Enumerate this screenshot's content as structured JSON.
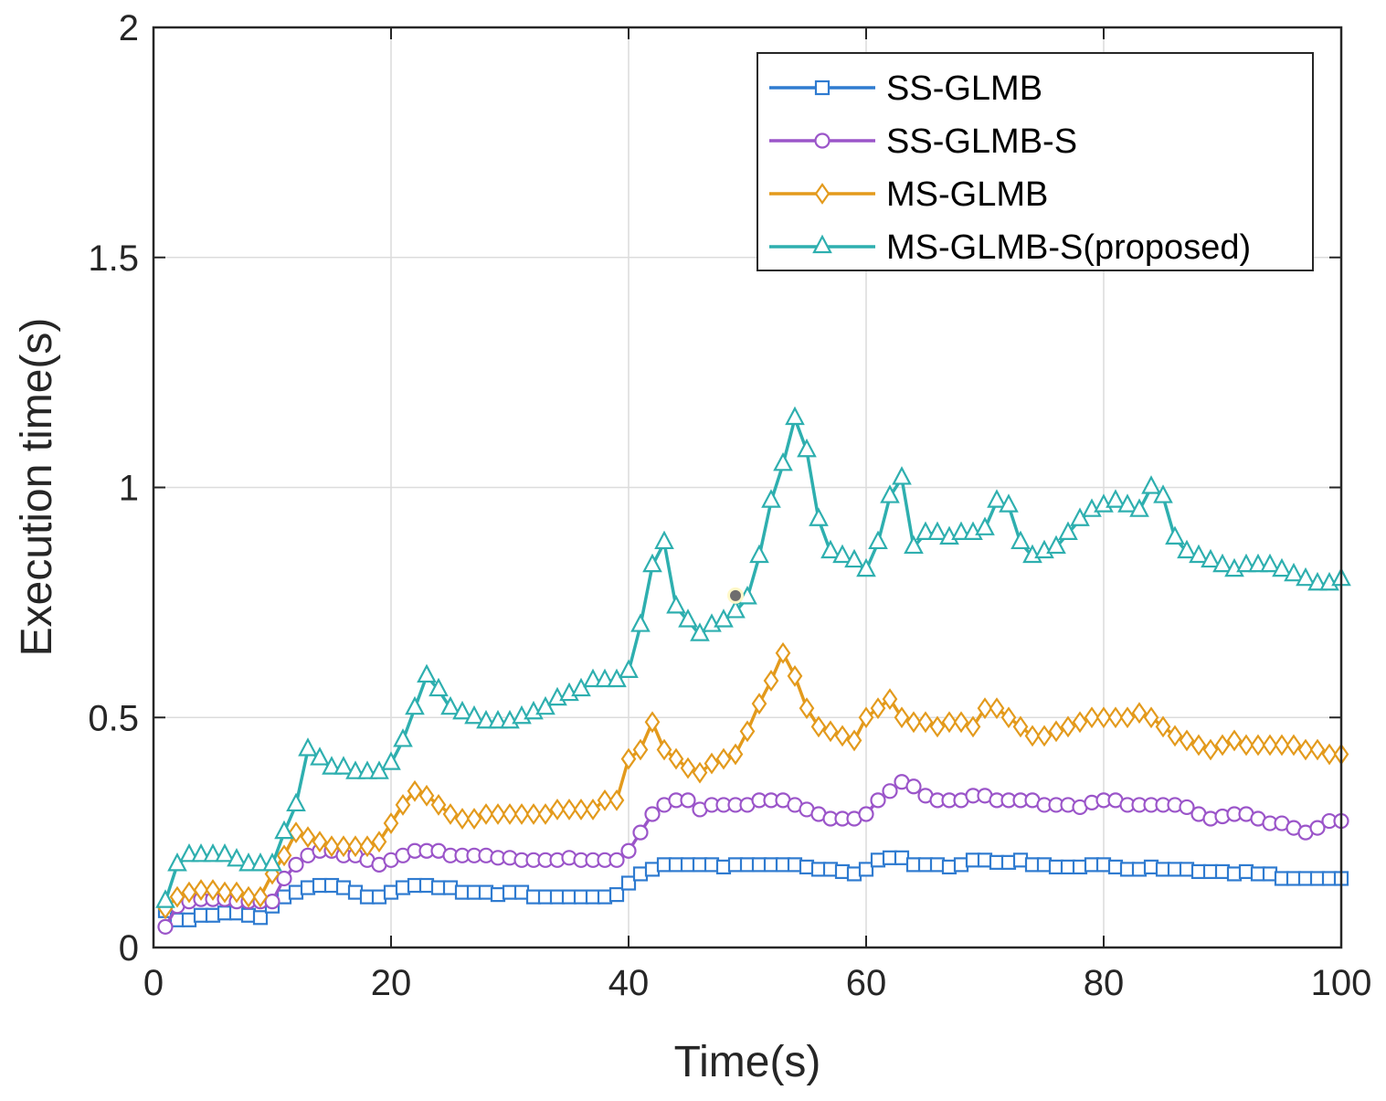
{
  "chart_data": {
    "type": "line",
    "title": "",
    "xlabel": "Time(s)",
    "ylabel": "Execution time(s)",
    "xlim": [
      0,
      100
    ],
    "ylim": [
      0,
      2
    ],
    "xticks": [
      0,
      20,
      40,
      60,
      80,
      100
    ],
    "yticks": [
      0,
      0.5,
      1,
      1.5,
      2
    ],
    "xtick_labels": [
      "0",
      "20",
      "40",
      "60",
      "80",
      "100"
    ],
    "ytick_labels": [
      "0",
      "0.5",
      "1",
      "1.5",
      "2"
    ],
    "grid": true,
    "legend_position": "top-right",
    "x_start": 1,
    "x_step": 1,
    "series": [
      {
        "name": "SS-GLMB",
        "color": "#2f7bd0",
        "marker": "square",
        "values": [
          0.08,
          0.06,
          0.06,
          0.07,
          0.07,
          0.075,
          0.075,
          0.07,
          0.065,
          0.09,
          0.11,
          0.12,
          0.13,
          0.135,
          0.135,
          0.13,
          0.12,
          0.11,
          0.11,
          0.12,
          0.13,
          0.135,
          0.135,
          0.13,
          0.13,
          0.12,
          0.12,
          0.12,
          0.115,
          0.12,
          0.12,
          0.11,
          0.11,
          0.11,
          0.11,
          0.11,
          0.11,
          0.11,
          0.115,
          0.14,
          0.16,
          0.17,
          0.18,
          0.18,
          0.18,
          0.18,
          0.18,
          0.175,
          0.18,
          0.18,
          0.18,
          0.18,
          0.18,
          0.18,
          0.175,
          0.17,
          0.17,
          0.165,
          0.16,
          0.17,
          0.19,
          0.195,
          0.195,
          0.18,
          0.18,
          0.18,
          0.175,
          0.18,
          0.19,
          0.19,
          0.185,
          0.185,
          0.19,
          0.18,
          0.18,
          0.175,
          0.175,
          0.175,
          0.18,
          0.18,
          0.175,
          0.17,
          0.17,
          0.175,
          0.17,
          0.17,
          0.17,
          0.165,
          0.165,
          0.165,
          0.16,
          0.165,
          0.16,
          0.16,
          0.15,
          0.15,
          0.15,
          0.15,
          0.15,
          0.15
        ]
      },
      {
        "name": "SS-GLMB-S",
        "color": "#9b55c9",
        "marker": "circle",
        "values": [
          0.045,
          0.09,
          0.1,
          0.105,
          0.105,
          0.105,
          0.1,
          0.1,
          0.1,
          0.1,
          0.15,
          0.18,
          0.2,
          0.21,
          0.21,
          0.2,
          0.2,
          0.19,
          0.18,
          0.19,
          0.2,
          0.21,
          0.21,
          0.21,
          0.2,
          0.2,
          0.2,
          0.2,
          0.195,
          0.195,
          0.19,
          0.19,
          0.19,
          0.19,
          0.195,
          0.19,
          0.19,
          0.19,
          0.19,
          0.21,
          0.25,
          0.29,
          0.31,
          0.32,
          0.32,
          0.3,
          0.31,
          0.31,
          0.31,
          0.31,
          0.32,
          0.32,
          0.32,
          0.31,
          0.3,
          0.29,
          0.28,
          0.28,
          0.28,
          0.29,
          0.32,
          0.34,
          0.36,
          0.35,
          0.33,
          0.32,
          0.32,
          0.32,
          0.33,
          0.33,
          0.32,
          0.32,
          0.32,
          0.32,
          0.31,
          0.31,
          0.31,
          0.305,
          0.315,
          0.32,
          0.32,
          0.31,
          0.31,
          0.31,
          0.31,
          0.31,
          0.305,
          0.29,
          0.28,
          0.285,
          0.29,
          0.29,
          0.28,
          0.27,
          0.27,
          0.26,
          0.25,
          0.26,
          0.275,
          0.275
        ]
      },
      {
        "name": "MS-GLMB",
        "color": "#e39a1c",
        "marker": "diamond",
        "values": [
          0.085,
          0.11,
          0.12,
          0.125,
          0.125,
          0.12,
          0.12,
          0.11,
          0.11,
          0.16,
          0.2,
          0.25,
          0.24,
          0.23,
          0.22,
          0.22,
          0.22,
          0.22,
          0.23,
          0.27,
          0.31,
          0.34,
          0.33,
          0.31,
          0.29,
          0.28,
          0.28,
          0.29,
          0.29,
          0.29,
          0.29,
          0.29,
          0.29,
          0.3,
          0.3,
          0.3,
          0.3,
          0.32,
          0.32,
          0.41,
          0.43,
          0.49,
          0.43,
          0.41,
          0.39,
          0.38,
          0.4,
          0.41,
          0.42,
          0.47,
          0.53,
          0.58,
          0.64,
          0.59,
          0.52,
          0.48,
          0.47,
          0.46,
          0.45,
          0.5,
          0.52,
          0.54,
          0.5,
          0.49,
          0.49,
          0.48,
          0.49,
          0.49,
          0.48,
          0.52,
          0.52,
          0.5,
          0.48,
          0.46,
          0.46,
          0.47,
          0.48,
          0.49,
          0.5,
          0.5,
          0.5,
          0.5,
          0.51,
          0.5,
          0.48,
          0.46,
          0.45,
          0.44,
          0.43,
          0.44,
          0.45,
          0.44,
          0.44,
          0.44,
          0.44,
          0.44,
          0.43,
          0.43,
          0.42,
          0.42
        ]
      },
      {
        "name": "MS-GLMB-S(proposed)",
        "color": "#2eafaf",
        "marker": "triangle",
        "values": [
          0.1,
          0.18,
          0.2,
          0.2,
          0.2,
          0.2,
          0.19,
          0.18,
          0.18,
          0.18,
          0.25,
          0.31,
          0.43,
          0.41,
          0.39,
          0.39,
          0.38,
          0.38,
          0.38,
          0.4,
          0.45,
          0.52,
          0.59,
          0.56,
          0.52,
          0.51,
          0.5,
          0.49,
          0.49,
          0.49,
          0.5,
          0.51,
          0.52,
          0.54,
          0.55,
          0.56,
          0.58,
          0.58,
          0.58,
          0.6,
          0.7,
          0.83,
          0.88,
          0.74,
          0.71,
          0.68,
          0.7,
          0.71,
          0.73,
          0.76,
          0.85,
          0.97,
          1.05,
          1.15,
          1.08,
          0.93,
          0.86,
          0.85,
          0.84,
          0.82,
          0.88,
          0.98,
          1.02,
          0.87,
          0.9,
          0.9,
          0.89,
          0.9,
          0.9,
          0.91,
          0.97,
          0.96,
          0.88,
          0.85,
          0.86,
          0.87,
          0.9,
          0.93,
          0.95,
          0.96,
          0.97,
          0.96,
          0.95,
          1.0,
          0.98,
          0.89,
          0.86,
          0.85,
          0.84,
          0.83,
          0.82,
          0.83,
          0.83,
          0.83,
          0.82,
          0.81,
          0.8,
          0.79,
          0.79,
          0.8
        ]
      }
    ],
    "annotation": {
      "x": 49,
      "y": 0.765
    }
  }
}
